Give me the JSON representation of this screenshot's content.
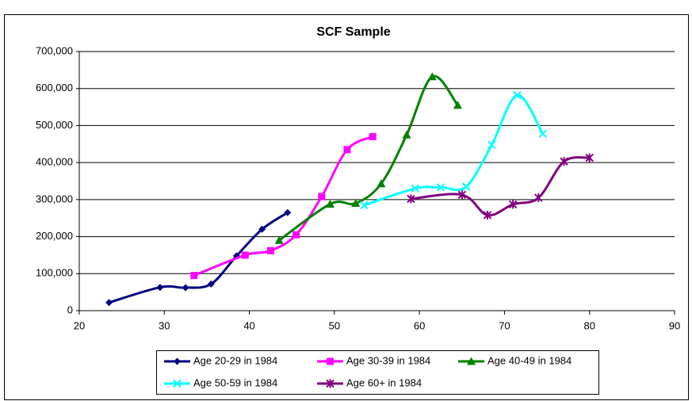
{
  "chart_data": {
    "type": "line",
    "title": "SCF Sample",
    "xlim": [
      20,
      90
    ],
    "xticks": [
      20,
      30,
      40,
      50,
      60,
      70,
      80,
      90
    ],
    "ylim": [
      0,
      700000
    ],
    "yticks": [
      0,
      {
        "value": 100000,
        "label": "100,000"
      },
      {
        "value": 200000,
        "label": "200,000"
      },
      {
        "value": 300000,
        "label": "300,000"
      },
      {
        "value": 400000,
        "label": "400,000"
      },
      {
        "value": 500000,
        "label": "500,000"
      },
      {
        "value": 600000,
        "label": "600,000"
      },
      {
        "value": 700000,
        "label": "700,000"
      }
    ],
    "grid": true,
    "smooth": true,
    "series": [
      {
        "name": "Age 20-29 in 1984",
        "color": "#000080",
        "marker": "diamond",
        "x": [
          23.5,
          29.5,
          32.5,
          35.5,
          38.5,
          41.5,
          44.5
        ],
        "values": [
          22000,
          63000,
          62000,
          72000,
          148000,
          220000,
          265000
        ]
      },
      {
        "name": "Age 30-39 in 1984",
        "color": "#ff00ff",
        "marker": "square",
        "x": [
          33.5,
          39.5,
          42.5,
          45.5,
          48.5,
          51.5,
          54.5
        ],
        "values": [
          95000,
          150000,
          162000,
          205000,
          308000,
          435000,
          470000
        ]
      },
      {
        "name": "Age 40-49 in 1984",
        "color": "#008000",
        "marker": "triangle",
        "x": [
          43.5,
          49.5,
          52.5,
          55.5,
          58.5,
          61.5,
          64.5
        ],
        "values": [
          190000,
          288000,
          290000,
          343000,
          475000,
          632000,
          555000
        ]
      },
      {
        "name": "Age 50-59 in 1984",
        "color": "#00ffff",
        "marker": "x",
        "x": [
          53.5,
          59.5,
          62.5,
          65.5,
          68.5,
          71.5,
          74.5
        ],
        "values": [
          285000,
          330000,
          333000,
          335000,
          448000,
          582000,
          478000
        ]
      },
      {
        "name": "Age 60+ in 1984",
        "color": "#800080",
        "marker": "star",
        "x": [
          59,
          65,
          68,
          71,
          74,
          77,
          80
        ],
        "values": [
          302000,
          313000,
          258000,
          287000,
          305000,
          403000,
          413000
        ]
      }
    ]
  }
}
